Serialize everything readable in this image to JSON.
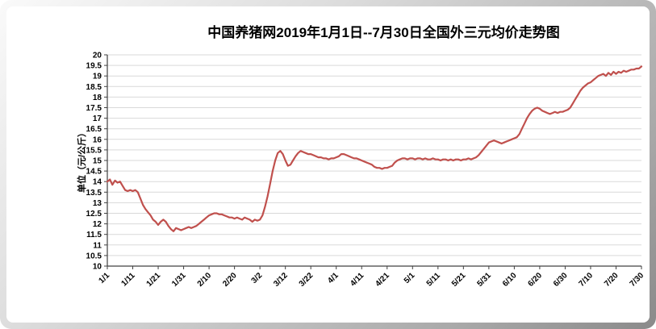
{
  "chart_data": {
    "type": "line",
    "title": "中国养猪网2019年1月1日--7月30日全国外三元均价走势图",
    "xlabel": "",
    "ylabel": "单位（元/公斤）",
    "ylim": [
      10,
      20
    ],
    "y_tick_step": 0.5,
    "grid": true,
    "legend": "none",
    "grid_color": "#D9D9D9",
    "axis_color": "#404040",
    "background": "#FFFFFF",
    "frame_gradient": [
      "#FAFAFA",
      "#8A8A8A"
    ],
    "x_tick_rotation": -45,
    "x_tick_labels": [
      "1/1",
      "1/11",
      "1/21",
      "1/31",
      "2/10",
      "2/20",
      "3/2",
      "3/12",
      "3/22",
      "4/1",
      "4/11",
      "4/21",
      "5/1",
      "5/11",
      "5/21",
      "5/31",
      "6/10",
      "6/20",
      "6/30",
      "7/10",
      "7/20",
      "7/30"
    ],
    "x_tick_day_index": [
      0,
      10,
      20,
      30,
      40,
      50,
      60,
      70,
      80,
      90,
      100,
      110,
      120,
      130,
      140,
      150,
      160,
      170,
      180,
      190,
      200,
      210
    ],
    "series": [
      {
        "name": "全国外三元均价",
        "color": "#C0504D",
        "values": [
          14.0,
          14.1,
          13.85,
          14.05,
          13.95,
          14.0,
          13.8,
          13.6,
          13.55,
          13.6,
          13.55,
          13.6,
          13.5,
          13.2,
          12.9,
          12.7,
          12.55,
          12.4,
          12.2,
          12.1,
          11.95,
          12.1,
          12.2,
          12.1,
          11.9,
          11.75,
          11.65,
          11.8,
          11.75,
          11.7,
          11.75,
          11.8,
          11.85,
          11.8,
          11.85,
          11.9,
          12.0,
          12.1,
          12.2,
          12.3,
          12.4,
          12.45,
          12.5,
          12.5,
          12.45,
          12.45,
          12.4,
          12.35,
          12.3,
          12.3,
          12.25,
          12.3,
          12.25,
          12.2,
          12.3,
          12.25,
          12.2,
          12.1,
          12.2,
          12.15,
          12.2,
          12.4,
          12.8,
          13.3,
          13.9,
          14.5,
          15.0,
          15.35,
          15.45,
          15.3,
          15.0,
          14.75,
          14.8,
          15.0,
          15.2,
          15.35,
          15.45,
          15.4,
          15.35,
          15.3,
          15.3,
          15.25,
          15.2,
          15.15,
          15.15,
          15.1,
          15.1,
          15.05,
          15.1,
          15.1,
          15.15,
          15.2,
          15.3,
          15.3,
          15.25,
          15.2,
          15.15,
          15.1,
          15.1,
          15.05,
          15.0,
          14.95,
          14.9,
          14.85,
          14.8,
          14.7,
          14.65,
          14.65,
          14.6,
          14.65,
          14.65,
          14.7,
          14.75,
          14.9,
          15.0,
          15.05,
          15.1,
          15.1,
          15.05,
          15.1,
          15.1,
          15.05,
          15.1,
          15.1,
          15.05,
          15.1,
          15.05,
          15.05,
          15.1,
          15.05,
          15.05,
          15.0,
          15.05,
          15.05,
          15.0,
          15.05,
          15.0,
          15.05,
          15.05,
          15.0,
          15.05,
          15.05,
          15.1,
          15.05,
          15.1,
          15.15,
          15.25,
          15.4,
          15.55,
          15.7,
          15.85,
          15.9,
          15.95,
          15.9,
          15.85,
          15.8,
          15.85,
          15.9,
          15.95,
          16.0,
          16.05,
          16.1,
          16.25,
          16.5,
          16.75,
          17.0,
          17.2,
          17.35,
          17.45,
          17.5,
          17.45,
          17.35,
          17.3,
          17.25,
          17.2,
          17.25,
          17.3,
          17.25,
          17.3,
          17.3,
          17.35,
          17.4,
          17.5,
          17.7,
          17.9,
          18.1,
          18.3,
          18.45,
          18.55,
          18.65,
          18.7,
          18.8,
          18.9,
          19.0,
          19.05,
          19.1,
          19.0,
          19.15,
          19.05,
          19.2,
          19.1,
          19.2,
          19.15,
          19.25,
          19.2,
          19.25,
          19.3,
          19.3,
          19.35,
          19.35,
          19.45
        ]
      }
    ]
  }
}
